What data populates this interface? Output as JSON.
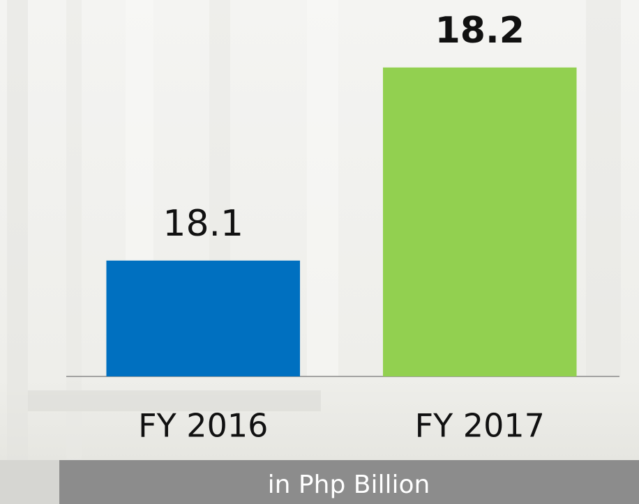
{
  "chart_data": {
    "type": "bar",
    "subtitle": "in Php Billion",
    "categories": [
      "FY 2016",
      "FY 2017"
    ],
    "values": [
      18.1,
      18.2
    ],
    "colors": [
      "#0070c0",
      "#92d050"
    ],
    "ylim": [
      18.04,
      18.22
    ]
  }
}
